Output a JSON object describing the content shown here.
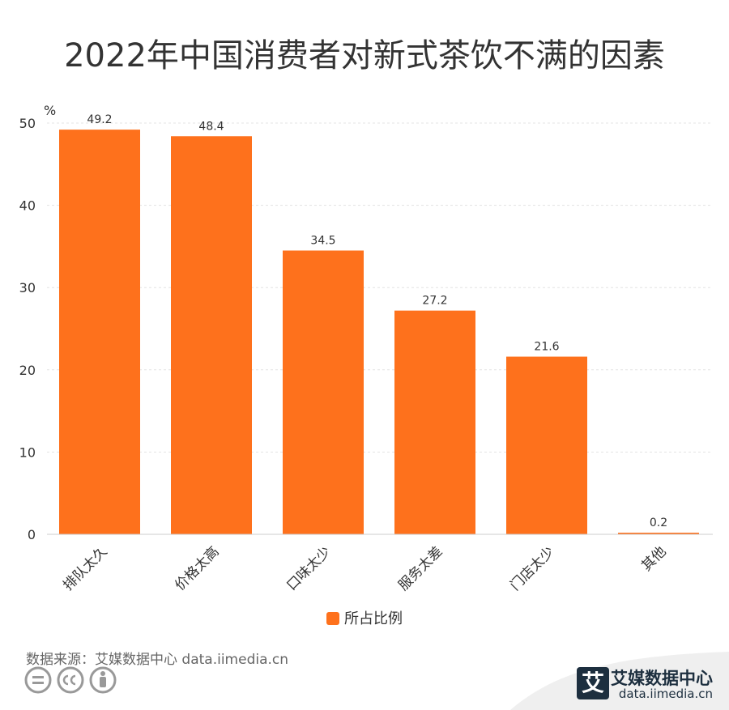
{
  "page": {
    "title": "2022年中国消费者对新式茶饮不满的因素",
    "source": "数据来源：艾媒数据中心 data.iimedia.cn",
    "brand_name": "艾媒数据中心",
    "brand_url": "data.iimedia.cn",
    "brand_logo_char": "艾"
  },
  "colors": {
    "bar": "#fe711c"
  },
  "chart_data": {
    "type": "bar",
    "title": "2022年中国消费者对新式茶饮不满的因素",
    "ylabel": "%",
    "xlabel": "",
    "categories": [
      "排队太久",
      "价格太高",
      "口味太少",
      "服务太差",
      "门店太少",
      "其他"
    ],
    "series": [
      {
        "name": "所占比例",
        "values": [
          49.2,
          48.4,
          34.5,
          27.2,
          21.6,
          0.2
        ]
      }
    ],
    "value_labels": [
      "49.2",
      "48.4",
      "34.5",
      "27.2",
      "21.6",
      "0.2"
    ],
    "ylim": [
      0,
      50
    ],
    "yticks": [
      0,
      10,
      20,
      30,
      40,
      50
    ],
    "ytick_labels": [
      "0",
      "10",
      "20",
      "30",
      "40",
      "50"
    ],
    "grid": true,
    "legend": "bottom-center"
  }
}
